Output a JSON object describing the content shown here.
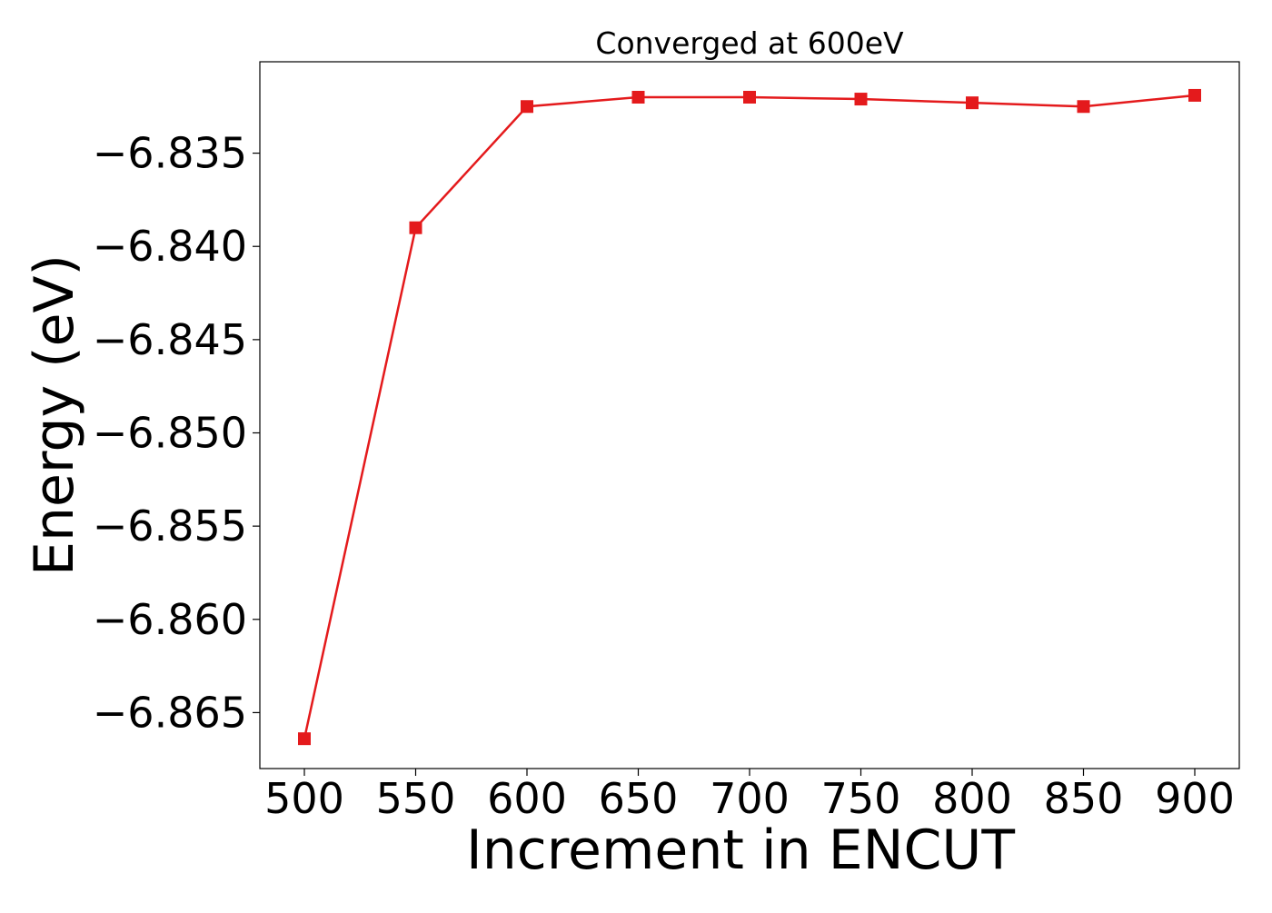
{
  "chart_data": {
    "type": "line",
    "title": "Converged at 600eV",
    "xlabel": "Increment in ENCUT",
    "ylabel": "Energy (eV)",
    "x": [
      500,
      550,
      600,
      650,
      700,
      750,
      800,
      850,
      900
    ],
    "xticks": [
      500,
      550,
      600,
      650,
      700,
      750,
      800,
      850,
      900
    ],
    "xtick_labels": [
      "500",
      "550",
      "600",
      "650",
      "700",
      "750",
      "800",
      "850",
      "900"
    ],
    "yticks": [
      -6.835,
      -6.84,
      -6.845,
      -6.85,
      -6.855,
      -6.86,
      -6.865
    ],
    "ytick_labels": [
      "−6.835",
      "−6.840",
      "−6.845",
      "−6.850",
      "−6.855",
      "−6.860",
      "−6.865"
    ],
    "xlim": [
      480,
      920
    ],
    "ylim": [
      -6.868,
      -6.8301
    ],
    "grid": false,
    "series": [
      {
        "values": [
          -6.8664,
          -6.839,
          -6.8325,
          -6.832,
          -6.832,
          -6.8321,
          -6.8323,
          -6.8325,
          -6.8319
        ],
        "color": "#e41a1c",
        "marker": "square"
      }
    ]
  }
}
